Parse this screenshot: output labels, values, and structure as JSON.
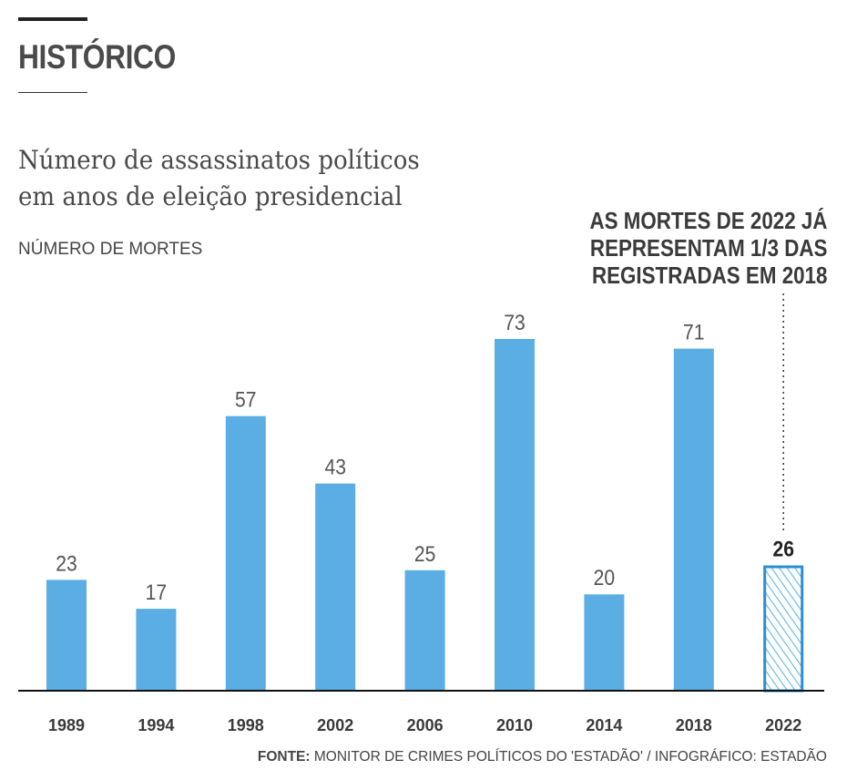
{
  "header": {
    "section": "HISTÓRICO",
    "title_line1": "Número de assassinatos políticos",
    "title_line2": "em anos de eleição presidencial",
    "ylabel": "NÚMERO DE MORTES"
  },
  "annotation": {
    "line1": "AS MORTES DE 2022 JÁ",
    "line2": "REPRESENTAM 1/3 DAS",
    "line3": "REGISTRADAS EM 2018"
  },
  "footer": {
    "source_label": "FONTE:",
    "source_text": "MONITOR DE CRIMES POLÍTICOS DO 'ESTADÃO'  / INFOGRÁFICO: ESTADÃO"
  },
  "colors": {
    "bar": "#5aaee3",
    "highlight_stroke": "#2a8fd4",
    "hatch": "#5aaee3",
    "axis": "#111111",
    "value_text": "#555555",
    "category_text": "#3a3a3a"
  },
  "chart_data": {
    "type": "bar",
    "title": "Número de assassinatos políticos em anos de eleição presidencial",
    "ylabel": "NÚMERO DE MORTES",
    "categories": [
      "1989",
      "1994",
      "1998",
      "2002",
      "2006",
      "2010",
      "2014",
      "2018",
      "2022"
    ],
    "values": [
      23,
      17,
      57,
      43,
      25,
      73,
      20,
      71,
      26
    ],
    "highlight": "2022",
    "ylim": [
      0,
      73
    ],
    "grid": false
  }
}
